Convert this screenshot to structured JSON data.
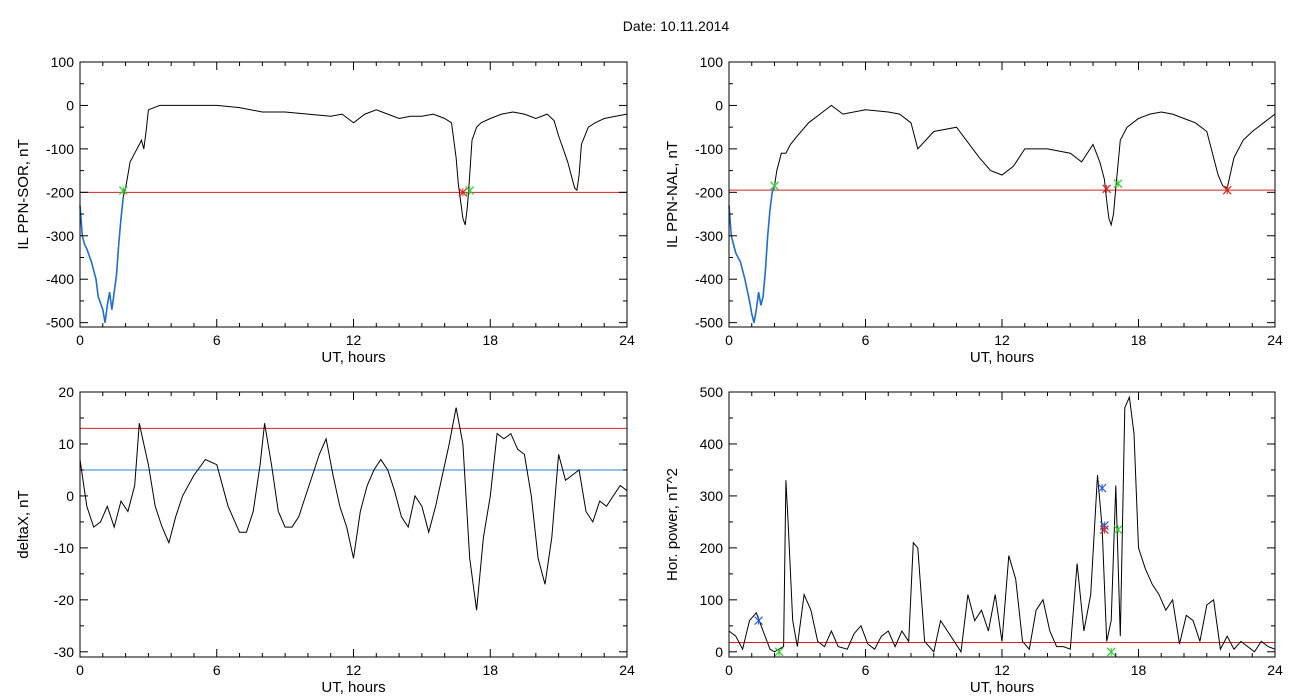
{
  "header": {
    "date_label": "Date:  10.11.2014"
  },
  "colors": {
    "trace": "#000000",
    "highlight": "#1f6fd1",
    "threshold_red": "#d62020",
    "threshold_blue": "#2a7fd4",
    "marker_green": "#33cc33",
    "marker_red": "#dd2222",
    "marker_blue": "#2255dd"
  },
  "chart_data": [
    {
      "id": "sor",
      "type": "line",
      "title": "",
      "xlabel": "UT, hours",
      "ylabel": "IL PPN-SOR, nT",
      "xlim": [
        0,
        24
      ],
      "ylim": [
        -510,
        100
      ],
      "xticks": [
        0,
        6,
        12,
        18,
        24
      ],
      "yticks": [
        -500,
        -400,
        -300,
        -200,
        -100,
        0,
        100
      ],
      "hlines": [
        {
          "y": -200,
          "color": "#d62020"
        }
      ],
      "highlight": {
        "from": 0,
        "to": 1.9,
        "color": "#1f6fd1"
      },
      "series": [
        {
          "x": [
            0,
            0.1,
            0.2,
            0.3,
            0.5,
            0.7,
            0.8,
            1.0,
            1.1,
            1.2,
            1.3,
            1.4,
            1.5,
            1.6,
            1.7,
            1.8,
            1.9,
            2.0,
            2.1,
            2.2,
            2.3,
            2.4,
            2.6,
            2.7,
            2.8,
            2.9,
            3.0,
            3.5,
            4.0,
            5.0,
            6.0,
            7.0,
            8.0,
            9.0,
            10.0,
            11.0,
            11.5,
            12.0,
            12.5,
            13.0,
            13.5,
            14.0,
            14.5,
            15.0,
            15.5,
            16.0,
            16.3,
            16.5,
            16.6,
            16.7,
            16.8,
            16.9,
            17.0,
            17.1,
            17.2,
            17.4,
            17.6,
            18.0,
            18.5,
            19.0,
            19.5,
            20.0,
            20.5,
            20.8,
            21.0,
            21.2,
            21.4,
            21.6,
            21.7,
            21.8,
            21.9,
            22.0,
            22.3,
            22.6,
            23.0,
            23.5,
            24.0
          ],
          "y": [
            -230,
            -300,
            -320,
            -330,
            -360,
            -400,
            -440,
            -470,
            -500,
            -460,
            -430,
            -470,
            -430,
            -390,
            -320,
            -260,
            -210,
            -190,
            -160,
            -130,
            -120,
            -110,
            -90,
            -80,
            -100,
            -60,
            -10,
            0,
            0,
            0,
            0,
            -5,
            -15,
            -15,
            -20,
            -25,
            -20,
            -40,
            -20,
            -10,
            -20,
            -30,
            -25,
            -25,
            -20,
            -30,
            -40,
            -120,
            -180,
            -220,
            -260,
            -275,
            -230,
            -160,
            -80,
            -50,
            -40,
            -30,
            -20,
            -15,
            -20,
            -30,
            -20,
            -35,
            -70,
            -100,
            -130,
            -170,
            -190,
            -195,
            -160,
            -90,
            -50,
            -40,
            -30,
            -25,
            -20
          ]
        }
      ]
    },
    {
      "id": "nal",
      "type": "line",
      "title": "",
      "xlabel": "UT, hours",
      "ylabel": "IL PPN-NAL, nT",
      "xlim": [
        0,
        24
      ],
      "ylim": [
        -510,
        100
      ],
      "xticks": [
        0,
        6,
        12,
        18,
        24
      ],
      "yticks": [
        -500,
        -400,
        -300,
        -200,
        -100,
        0,
        100
      ],
      "hlines": [
        {
          "y": -195,
          "color": "#d62020"
        }
      ],
      "highlight": {
        "from": 0,
        "to": 2.0,
        "color": "#1f6fd1"
      },
      "series": [
        {
          "x": [
            0,
            0.1,
            0.2,
            0.3,
            0.5,
            0.7,
            0.9,
            1.0,
            1.1,
            1.2,
            1.3,
            1.4,
            1.5,
            1.6,
            1.7,
            1.8,
            1.9,
            2.0,
            2.1,
            2.3,
            2.5,
            2.7,
            3.0,
            3.5,
            4.0,
            4.5,
            5.0,
            6.0,
            7.0,
            7.5,
            8.0,
            8.3,
            9.0,
            10.0,
            11.0,
            11.5,
            12.0,
            12.5,
            13.0,
            14.0,
            15.0,
            15.5,
            16.0,
            16.3,
            16.5,
            16.6,
            16.7,
            16.8,
            16.9,
            17.0,
            17.2,
            17.5,
            18.0,
            18.5,
            19.0,
            19.5,
            20.0,
            20.5,
            21.0,
            21.3,
            21.5,
            21.7,
            21.9,
            22.2,
            22.6,
            23.0,
            23.5,
            24.0
          ],
          "y": [
            -230,
            -300,
            -320,
            -340,
            -360,
            -400,
            -450,
            -480,
            -500,
            -470,
            -430,
            -460,
            -440,
            -380,
            -300,
            -240,
            -200,
            -185,
            -150,
            -110,
            -110,
            -90,
            -70,
            -40,
            -20,
            0,
            -20,
            -10,
            -15,
            -20,
            -40,
            -100,
            -60,
            -50,
            -120,
            -150,
            -160,
            -140,
            -100,
            -100,
            -110,
            -130,
            -90,
            -130,
            -170,
            -220,
            -260,
            -275,
            -250,
            -190,
            -80,
            -50,
            -30,
            -20,
            -15,
            -20,
            -30,
            -40,
            -60,
            -120,
            -160,
            -185,
            -190,
            -120,
            -80,
            -60,
            -40,
            -20
          ]
        }
      ]
    },
    {
      "id": "deltax",
      "type": "line",
      "title": "",
      "xlabel": "UT, hours",
      "ylabel": "deltaX, nT",
      "xlim": [
        0,
        24
      ],
      "ylim": [
        -31,
        20
      ],
      "xticks": [
        0,
        6,
        12,
        18,
        24
      ],
      "yticks": [
        -30,
        -20,
        -10,
        0,
        10,
        20
      ],
      "hlines": [
        {
          "y": 13,
          "color": "#d62020"
        },
        {
          "y": 5,
          "color": "#2a7fd4"
        }
      ],
      "series": [
        {
          "x": [
            0,
            0.3,
            0.6,
            0.9,
            1.2,
            1.5,
            1.8,
            2.1,
            2.4,
            2.6,
            2.8,
            3.0,
            3.3,
            3.6,
            3.9,
            4.2,
            4.5,
            5.0,
            5.5,
            6.0,
            6.5,
            7.0,
            7.3,
            7.6,
            7.9,
            8.1,
            8.4,
            8.7,
            9.0,
            9.3,
            9.6,
            9.9,
            10.2,
            10.5,
            10.8,
            11.1,
            11.4,
            11.7,
            12.0,
            12.3,
            12.6,
            12.9,
            13.2,
            13.5,
            13.8,
            14.1,
            14.4,
            14.7,
            15.0,
            15.3,
            15.6,
            15.9,
            16.2,
            16.5,
            16.8,
            17.1,
            17.4,
            17.7,
            18.0,
            18.3,
            18.6,
            18.9,
            19.2,
            19.5,
            19.8,
            20.1,
            20.4,
            20.7,
            21.0,
            21.3,
            21.6,
            21.9,
            22.2,
            22.5,
            22.8,
            23.1,
            23.4,
            23.7,
            24.0
          ],
          "y": [
            7,
            -2,
            -6,
            -5,
            -2,
            -6,
            -1,
            -3,
            2,
            14,
            10,
            6,
            -2,
            -6,
            -9,
            -4,
            0,
            4,
            7,
            6,
            -2,
            -7,
            -7,
            -3,
            6,
            14,
            6,
            -3,
            -6,
            -6,
            -4,
            0,
            4,
            8,
            11,
            4,
            -2,
            -6,
            -12,
            -3,
            2,
            5,
            7,
            5,
            1,
            -4,
            -6,
            0,
            -2,
            -7,
            -2,
            4,
            10,
            17,
            10,
            -12,
            -22,
            -8,
            0,
            12,
            11,
            12,
            9,
            8,
            0,
            -12,
            -17,
            -8,
            8,
            3,
            4,
            5,
            -3,
            -5,
            -1,
            -2,
            0,
            2,
            1
          ]
        }
      ]
    },
    {
      "id": "power",
      "type": "line",
      "title": "",
      "xlabel": "UT, hours",
      "ylabel": "Hor. power, nT^2",
      "xlim": [
        0,
        24
      ],
      "ylim": [
        -10,
        500
      ],
      "xticks": [
        0,
        6,
        12,
        18,
        24
      ],
      "yticks": [
        0,
        100,
        200,
        300,
        400,
        500
      ],
      "hlines": [
        {
          "y": 18,
          "color": "#d62020"
        }
      ],
      "series": [
        {
          "x": [
            0,
            0.3,
            0.6,
            0.9,
            1.2,
            1.5,
            1.8,
            2.0,
            2.2,
            2.4,
            2.5,
            2.6,
            2.8,
            3.0,
            3.3,
            3.6,
            3.9,
            4.2,
            4.5,
            4.8,
            5.2,
            5.5,
            5.8,
            6.1,
            6.4,
            6.7,
            7.0,
            7.3,
            7.6,
            7.9,
            8.1,
            8.3,
            8.6,
            9.0,
            9.3,
            9.6,
            9.9,
            10.2,
            10.5,
            10.8,
            11.1,
            11.4,
            11.7,
            12.0,
            12.3,
            12.6,
            12.9,
            13.2,
            13.5,
            13.8,
            14.1,
            14.4,
            14.7,
            15.0,
            15.3,
            15.6,
            15.9,
            16.2,
            16.4,
            16.6,
            16.8,
            17.0,
            17.2,
            17.4,
            17.6,
            17.8,
            18.0,
            18.3,
            18.6,
            18.9,
            19.2,
            19.5,
            19.8,
            20.1,
            20.4,
            20.7,
            21.0,
            21.3,
            21.6,
            21.9,
            22.2,
            22.5,
            22.8,
            23.1,
            23.4,
            23.7,
            24.0
          ],
          "y": [
            40,
            30,
            5,
            60,
            75,
            40,
            5,
            0,
            5,
            10,
            330,
            250,
            60,
            10,
            110,
            80,
            20,
            10,
            40,
            10,
            5,
            35,
            50,
            15,
            5,
            30,
            40,
            10,
            40,
            20,
            210,
            200,
            20,
            0,
            60,
            40,
            20,
            0,
            110,
            60,
            80,
            40,
            110,
            20,
            185,
            140,
            20,
            5,
            80,
            100,
            40,
            10,
            10,
            5,
            170,
            40,
            110,
            340,
            240,
            20,
            60,
            320,
            30,
            470,
            490,
            420,
            200,
            160,
            130,
            110,
            80,
            100,
            15,
            70,
            60,
            20,
            90,
            100,
            5,
            30,
            5,
            20,
            10,
            0,
            20,
            10,
            5
          ]
        }
      ],
      "markers": [
        {
          "x": 1.3,
          "y": 60,
          "color": "#2255dd"
        },
        {
          "x": 2.2,
          "y": 0,
          "color": "#33cc33"
        },
        {
          "x": 16.4,
          "y": 315,
          "color": "#2255dd"
        },
        {
          "x": 16.5,
          "y": 243,
          "color": "#2255dd"
        },
        {
          "x": 16.5,
          "y": 235,
          "color": "#dd2222"
        },
        {
          "x": 17.1,
          "y": 235,
          "color": "#33cc33"
        },
        {
          "x": 16.8,
          "y": 0,
          "color": "#33cc33"
        }
      ]
    }
  ],
  "extra_markers": {
    "sor": [
      {
        "x": 1.9,
        "y": -196,
        "color": "#33cc33"
      },
      {
        "x": 16.8,
        "y": -200,
        "color": "#dd2222"
      },
      {
        "x": 17.1,
        "y": -196,
        "color": "#33cc33"
      }
    ],
    "nal": [
      {
        "x": 2.0,
        "y": -185,
        "color": "#33cc33"
      },
      {
        "x": 16.6,
        "y": -192,
        "color": "#dd2222"
      },
      {
        "x": 17.1,
        "y": -180,
        "color": "#33cc33"
      },
      {
        "x": 21.9,
        "y": -195,
        "color": "#dd2222"
      }
    ]
  }
}
